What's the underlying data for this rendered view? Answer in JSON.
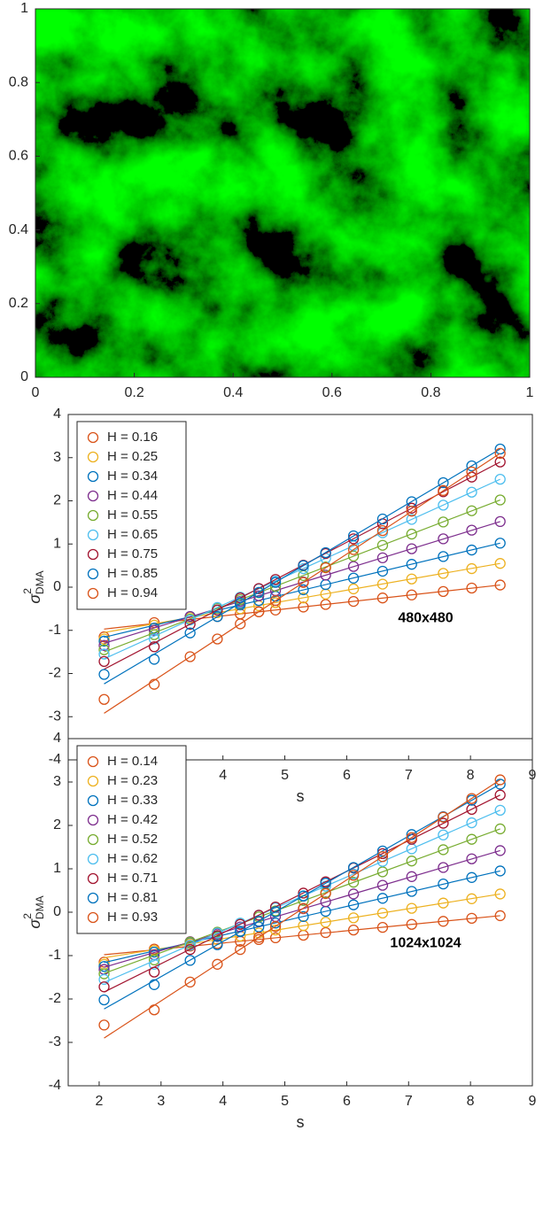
{
  "chart_data": [
    {
      "type": "image",
      "xlim": [
        0,
        1
      ],
      "ylim": [
        0,
        1
      ],
      "xticks": [
        0,
        0.2,
        0.4,
        0.6,
        0.8,
        1
      ],
      "yticks": [
        0,
        0.2,
        0.4,
        0.6,
        0.8,
        1
      ]
    },
    {
      "type": "scatter",
      "xlabel": "s",
      "ylabel": {
        "symbol": "σ",
        "sup": "2",
        "sub": "DMA"
      },
      "annotation": "480x480",
      "legend": "upper left",
      "grid": false,
      "xlim": [
        1.5,
        9
      ],
      "ylim": [
        -4,
        4
      ],
      "xticks": [
        2,
        3,
        4,
        5,
        6,
        7,
        8,
        9
      ],
      "yticks": [
        -4,
        -3,
        -2,
        -1,
        0,
        1,
        2,
        3,
        4
      ],
      "x": [
        2.08,
        2.89,
        3.47,
        3.91,
        4.28,
        4.58,
        4.85,
        5.3,
        5.66,
        6.11,
        6.58,
        7.05,
        7.56,
        8.02,
        8.48
      ],
      "fit_x": [
        2.08,
        8.48
      ],
      "series": [
        {
          "name": "H = 0.16",
          "color": "#D95319",
          "values": [
            -1.15,
            -0.82,
            -0.75,
            -0.68,
            -0.62,
            -0.57,
            -0.53,
            -0.46,
            -0.4,
            -0.33,
            -0.25,
            -0.18,
            -0.1,
            -0.02,
            0.05
          ],
          "fit": [
            -0.97,
            0.05
          ]
        },
        {
          "name": "H = 0.25",
          "color": "#EDB120",
          "values": [
            -1.2,
            -0.88,
            -0.7,
            -0.59,
            -0.5,
            -0.43,
            -0.36,
            -0.25,
            -0.16,
            -0.04,
            0.07,
            0.19,
            0.32,
            0.43,
            0.55
          ],
          "fit": [
            -1.05,
            0.55
          ]
        },
        {
          "name": "H = 0.34",
          "color": "#0072BD",
          "values": [
            -1.25,
            -0.95,
            -0.68,
            -0.53,
            -0.41,
            -0.31,
            -0.21,
            -0.06,
            0.06,
            0.21,
            0.37,
            0.53,
            0.71,
            0.86,
            1.02
          ],
          "fit": [
            -1.16,
            1.02
          ]
        },
        {
          "name": "H = 0.44",
          "color": "#7E2F8E",
          "values": [
            -1.35,
            -1.0,
            -0.68,
            -0.49,
            -0.33,
            -0.2,
            -0.08,
            0.12,
            0.28,
            0.48,
            0.68,
            0.89,
            1.12,
            1.32,
            1.52
          ],
          "fit": [
            -1.3,
            1.52
          ]
        },
        {
          "name": "H = 0.55",
          "color": "#77AC30",
          "values": [
            -1.45,
            -1.1,
            -0.74,
            -0.49,
            -0.29,
            -0.13,
            0.02,
            0.27,
            0.47,
            0.72,
            0.97,
            1.23,
            1.51,
            1.77,
            2.02
          ],
          "fit": [
            -1.5,
            2.02
          ]
        },
        {
          "name": "H = 0.65",
          "color": "#4DBEEE",
          "values": [
            -1.55,
            -1.2,
            -0.76,
            -0.47,
            -0.23,
            -0.04,
            0.14,
            0.43,
            0.67,
            0.96,
            1.26,
            1.57,
            1.9,
            2.2,
            2.5
          ],
          "fit": [
            -1.66,
            2.5
          ]
        },
        {
          "name": "H = 0.75",
          "color": "#A2142F",
          "values": [
            -1.72,
            -1.38,
            -0.86,
            -0.53,
            -0.25,
            -0.03,
            0.18,
            0.51,
            0.78,
            1.12,
            1.47,
            1.83,
            2.21,
            2.55,
            2.9
          ],
          "fit": [
            -1.9,
            2.9
          ]
        },
        {
          "name": "H = 0.85",
          "color": "#0072BD",
          "values": [
            -2.02,
            -1.67,
            -1.06,
            -0.68,
            -0.37,
            -0.12,
            0.11,
            0.5,
            0.8,
            1.19,
            1.58,
            1.98,
            2.42,
            2.81,
            3.2
          ],
          "fit": [
            -2.24,
            3.2
          ]
        },
        {
          "name": "H = 0.94",
          "color": "#D95319",
          "values": [
            -2.6,
            -2.25,
            -1.61,
            -1.2,
            -0.85,
            -0.57,
            -0.31,
            0.11,
            0.45,
            0.87,
            1.31,
            1.76,
            2.24,
            2.67,
            3.1
          ],
          "fit": [
            -2.92,
            3.1
          ]
        }
      ]
    },
    {
      "type": "scatter",
      "xlabel": "s",
      "ylabel": {
        "symbol": "σ",
        "sup": "2",
        "sub": "DMA"
      },
      "annotation": "1024x1024",
      "legend": "upper left",
      "grid": false,
      "xlim": [
        1.5,
        9
      ],
      "ylim": [
        -4,
        4
      ],
      "xticks": [
        2,
        3,
        4,
        5,
        6,
        7,
        8,
        9
      ],
      "yticks": [
        -4,
        -3,
        -2,
        -1,
        0,
        1,
        2,
        3,
        4
      ],
      "x": [
        2.08,
        2.89,
        3.47,
        3.91,
        4.28,
        4.58,
        4.85,
        5.3,
        5.66,
        6.11,
        6.58,
        7.05,
        7.56,
        8.02,
        8.48
      ],
      "fit_x": [
        2.08,
        8.48
      ],
      "series": [
        {
          "name": "H = 0.14",
          "color": "#D95319",
          "values": [
            -1.15,
            -0.85,
            -0.78,
            -0.72,
            -0.67,
            -0.63,
            -0.59,
            -0.53,
            -0.47,
            -0.41,
            -0.35,
            -0.28,
            -0.21,
            -0.14,
            -0.08
          ],
          "fit": [
            -0.98,
            -0.08
          ]
        },
        {
          "name": "H = 0.23",
          "color": "#EDB120",
          "values": [
            -1.2,
            -0.88,
            -0.73,
            -0.63,
            -0.55,
            -0.48,
            -0.41,
            -0.31,
            -0.23,
            -0.13,
            -0.02,
            0.09,
            0.21,
            0.31,
            0.42
          ],
          "fit": [
            -1.05,
            0.42
          ]
        },
        {
          "name": "H = 0.33",
          "color": "#0072BD",
          "values": [
            -1.25,
            -0.92,
            -0.7,
            -0.56,
            -0.44,
            -0.34,
            -0.25,
            -0.1,
            0.02,
            0.17,
            0.32,
            0.48,
            0.65,
            0.8,
            0.95
          ],
          "fit": [
            -1.16,
            0.95
          ]
        },
        {
          "name": "H = 0.42",
          "color": "#7E2F8E",
          "values": [
            -1.32,
            -0.98,
            -0.68,
            -0.5,
            -0.34,
            -0.22,
            -0.1,
            0.08,
            0.24,
            0.42,
            0.62,
            0.82,
            1.03,
            1.23,
            1.42
          ],
          "fit": [
            -1.27,
            1.42
          ]
        },
        {
          "name": "H = 0.52",
          "color": "#77AC30",
          "values": [
            -1.42,
            -1.1,
            -0.69,
            -0.46,
            -0.26,
            -0.11,
            0.03,
            0.27,
            0.45,
            0.69,
            0.93,
            1.18,
            1.44,
            1.68,
            1.92
          ],
          "fit": [
            -1.41,
            1.92
          ]
        },
        {
          "name": "H = 0.62",
          "color": "#4DBEEE",
          "values": [
            -1.55,
            -1.2,
            -0.76,
            -0.48,
            -0.25,
            -0.07,
            0.1,
            0.38,
            0.6,
            0.88,
            1.17,
            1.46,
            1.78,
            2.06,
            2.35
          ],
          "fit": [
            -1.62,
            2.35
          ]
        },
        {
          "name": "H = 0.71",
          "color": "#A2142F",
          "values": [
            -1.72,
            -1.38,
            -0.86,
            -0.54,
            -0.28,
            -0.07,
            0.12,
            0.44,
            0.7,
            1.02,
            1.35,
            1.68,
            2.05,
            2.37,
            2.7
          ],
          "fit": [
            -1.84,
            2.7
          ]
        },
        {
          "name": "H = 0.81",
          "color": "#0072BD",
          "values": [
            -2.02,
            -1.67,
            -1.11,
            -0.75,
            -0.45,
            -0.21,
            0.01,
            0.37,
            0.67,
            1.03,
            1.41,
            1.79,
            2.2,
            2.58,
            2.95
          ],
          "fit": [
            -2.23,
            2.95
          ]
        },
        {
          "name": "H = 0.93",
          "color": "#D95319",
          "values": [
            -2.6,
            -2.25,
            -1.61,
            -1.2,
            -0.86,
            -0.58,
            -0.33,
            0.09,
            0.43,
            0.85,
            1.28,
            1.72,
            2.19,
            2.62,
            3.05
          ],
          "fit": [
            -2.9,
            3.05
          ]
        }
      ]
    }
  ]
}
